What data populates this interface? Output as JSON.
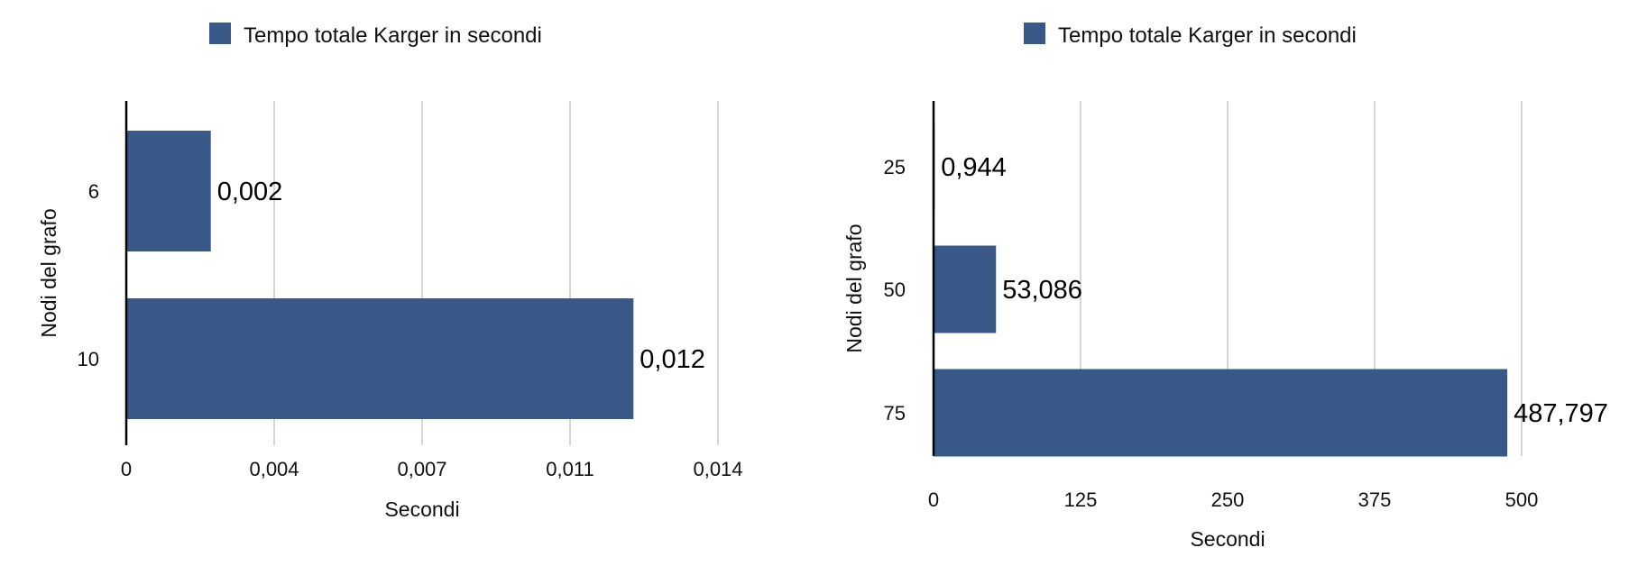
{
  "chart_data": [
    {
      "type": "bar",
      "orientation": "horizontal",
      "categories": [
        "6",
        "10"
      ],
      "series": [
        {
          "name": "Tempo totale Karger in secondi",
          "values": [
            0.002,
            0.012
          ],
          "labels": [
            "0,002",
            "0,012"
          ]
        }
      ],
      "xlabel": "Secondi",
      "ylabel": "Nodi del grafo",
      "xlim": [
        0,
        0.014
      ],
      "x_ticks": [
        0,
        0.0035,
        0.007,
        0.0105,
        0.014
      ],
      "x_tick_labels": [
        "0",
        "0,004",
        "0,007",
        "0,011",
        "0,014"
      ],
      "grid": "vertical",
      "legend": "top",
      "color": "#385887"
    },
    {
      "type": "bar",
      "orientation": "horizontal",
      "categories": [
        "25",
        "50",
        "75"
      ],
      "series": [
        {
          "name": "Tempo totale Karger in secondi",
          "values": [
            0.944,
            53.086,
            487.797
          ],
          "labels": [
            "0,944",
            "53,086",
            "487,797"
          ]
        }
      ],
      "xlabel": "Secondi",
      "ylabel": "Nodi del grafo",
      "xlim": [
        0,
        500
      ],
      "x_ticks": [
        0,
        125,
        250,
        375,
        500
      ],
      "x_tick_labels": [
        "0",
        "125",
        "250",
        "375",
        "500"
      ],
      "grid": "vertical",
      "legend": "top",
      "color": "#385887"
    }
  ]
}
